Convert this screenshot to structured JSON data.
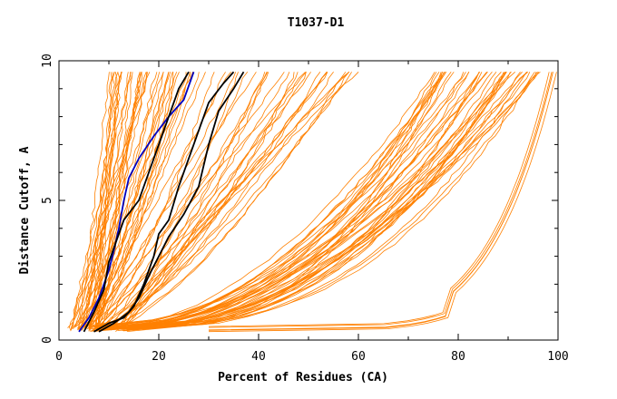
{
  "chart_data": {
    "type": "line",
    "title": "T1037-D1",
    "xlabel": "Percent of Residues (CA)",
    "ylabel": "Distance Cutoff, A",
    "xlim": [
      0,
      100
    ],
    "ylim": [
      0,
      10
    ],
    "x_ticks": [
      "0",
      "20",
      "40",
      "60",
      "80",
      "100"
    ],
    "y_ticks": [
      "0",
      "5",
      "10"
    ],
    "grid": false,
    "colors": {
      "bulk": "#ff8000",
      "highlight_black": "#000000",
      "highlight_blue": "#0000c0"
    },
    "bulk_series_count": 120,
    "bulk_curve_groups": [
      {
        "name": "",
        "start_x_range": [
          2,
          8
        ],
        "x_at_10": [
          10,
          30
        ],
        "count": 40
      },
      {
        "name": "",
        "start_x_range": [
          5,
          14
        ],
        "x_at_10": [
          30,
          60
        ],
        "count": 30
      },
      {
        "name": "",
        "start_x_range": [
          6,
          14
        ],
        "x_at_10": [
          75,
          97
        ],
        "count": 45
      },
      {
        "name": "",
        "start_x_range": [
          30,
          30
        ],
        "x_at_10": [
          98,
          100
        ],
        "count": 5
      }
    ],
    "highlight_series": [
      {
        "name": "",
        "color": "#0000c0",
        "points": [
          [
            4,
            0.3
          ],
          [
            6,
            0.8
          ],
          [
            8,
            1.5
          ],
          [
            10,
            2.5
          ],
          [
            11,
            3.2
          ],
          [
            12,
            4.0
          ],
          [
            13,
            5.0
          ],
          [
            14,
            5.8
          ],
          [
            16,
            6.5
          ],
          [
            19,
            7.3
          ],
          [
            22,
            8.0
          ],
          [
            25,
            8.6
          ],
          [
            27,
            9.6
          ]
        ]
      },
      {
        "name": "",
        "color": "#000000",
        "points": [
          [
            5,
            0.3
          ],
          [
            7,
            1.0
          ],
          [
            9,
            1.8
          ],
          [
            10,
            2.8
          ],
          [
            11,
            3.3
          ],
          [
            13,
            4.3
          ],
          [
            16,
            5.0
          ],
          [
            18,
            6.0
          ],
          [
            20,
            7.0
          ],
          [
            22,
            8.0
          ],
          [
            24,
            9.0
          ],
          [
            26,
            9.6
          ]
        ]
      },
      {
        "name": "",
        "color": "#000000",
        "points": [
          [
            7,
            0.3
          ],
          [
            10,
            0.6
          ],
          [
            13,
            0.8
          ],
          [
            15,
            1.2
          ],
          [
            17,
            2.0
          ],
          [
            19,
            3.0
          ],
          [
            20,
            3.8
          ],
          [
            22,
            4.3
          ],
          [
            24,
            5.5
          ],
          [
            26,
            6.5
          ],
          [
            28,
            7.5
          ],
          [
            30,
            8.5
          ],
          [
            33,
            9.2
          ],
          [
            35,
            9.6
          ]
        ]
      },
      {
        "name": "",
        "color": "#000000",
        "points": [
          [
            8,
            0.3
          ],
          [
            11,
            0.6
          ],
          [
            14,
            1.0
          ],
          [
            16,
            1.5
          ],
          [
            18,
            2.3
          ],
          [
            20,
            3.0
          ],
          [
            22,
            3.7
          ],
          [
            25,
            4.5
          ],
          [
            28,
            5.5
          ],
          [
            30,
            7.0
          ],
          [
            32,
            8.2
          ],
          [
            35,
            9.0
          ],
          [
            37,
            9.6
          ]
        ]
      }
    ]
  }
}
